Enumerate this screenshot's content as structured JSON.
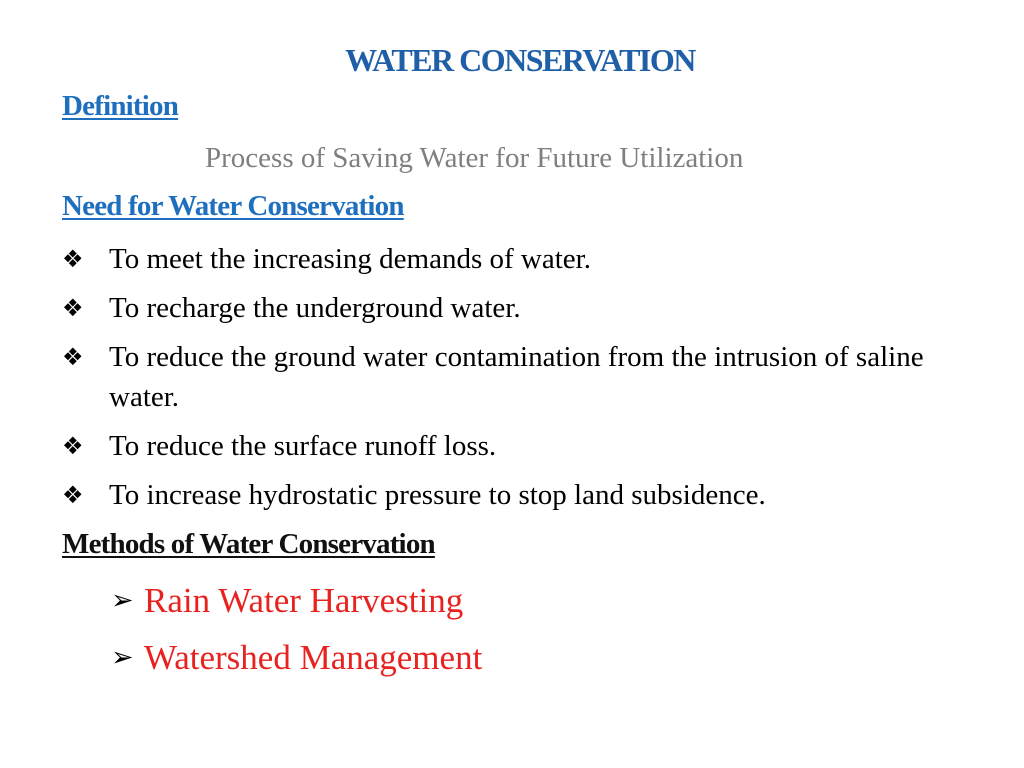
{
  "slide": {
    "title": "WATER CONSERVATION",
    "definition_heading": "Definition",
    "definition_text": "Process of Saving Water for Future Utilization",
    "need_heading": "Need for Water Conservation",
    "need_items": [
      {
        "icon": "diamond-bullet-icon",
        "text": "To meet the increasing demands of water."
      },
      {
        "icon": "diamond-bullet-icon",
        "text": "To recharge the underground water."
      },
      {
        "icon": "diamond-bullet-icon",
        "text": "To reduce the ground water contamination from the intrusion of saline water."
      },
      {
        "icon": "diamond-bullet-icon",
        "text": "To reduce the surface runoff loss."
      },
      {
        "icon": "diamond-bullet-icon",
        "text": "To increase hydrostatic pressure to stop land subsidence."
      }
    ],
    "methods_heading": "Methods of Water Conservation",
    "methods_items": [
      {
        "icon": "arrow-bullet-icon",
        "text": "Rain Water Harvesting"
      },
      {
        "icon": "arrow-bullet-icon",
        "text": "Watershed Management"
      }
    ]
  },
  "colors": {
    "title": "#1f5fa8",
    "link_heading": "#1f6fbf",
    "definition_text": "#7f7f7f",
    "method_text": "#e8231f",
    "body_text": "#000000"
  }
}
